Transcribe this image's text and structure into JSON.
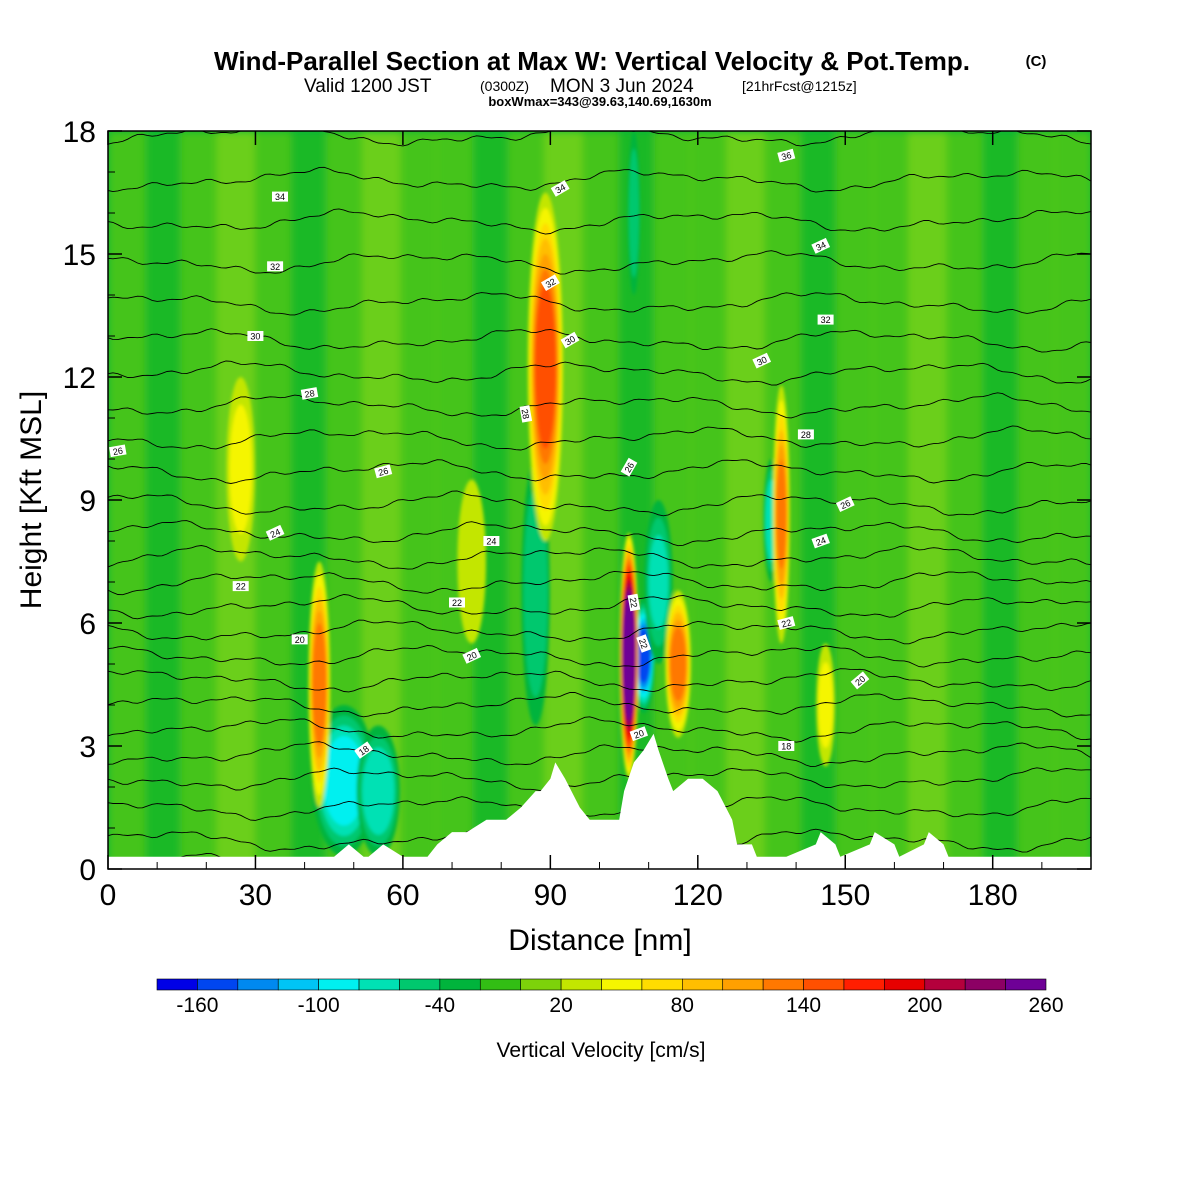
{
  "header": {
    "title": "Wind-Parallel Section at Max W: Vertical Velocity & Pot.Temp.",
    "title_mark": "(C)",
    "valid_prefix": "Valid 1200 JST",
    "valid_utc": "(0300Z)",
    "valid_date": "MON 3 Jun 2024",
    "forecast_tag": "[21hrFcst@1215z]",
    "box_info": "boxWmax=343@39.63,140.69,1630m"
  },
  "chart_data": {
    "type": "heatmap",
    "xlabel": "Distance [nm]",
    "ylabel": "Height [Kft MSL]",
    "xlim": [
      0,
      200
    ],
    "ylim": [
      0,
      18
    ],
    "x_ticks": [
      "0",
      "30",
      "60",
      "90",
      "120",
      "150",
      "180"
    ],
    "x_tick_values": [
      0,
      30,
      60,
      90,
      120,
      150,
      180
    ],
    "y_ticks": [
      "0",
      "3",
      "6",
      "9",
      "12",
      "15",
      "18"
    ],
    "y_tick_values": [
      0,
      3,
      6,
      9,
      12,
      15,
      18
    ],
    "background_w_cms": 0,
    "updraft_bands": [
      {
        "x": 27,
        "width": 2.5,
        "z_bottom": 7.5,
        "z_top": 12,
        "w_max": 40
      },
      {
        "x": 43,
        "width": 1.8,
        "z_bottom": 1.5,
        "z_top": 7.5,
        "w_max": 130
      },
      {
        "x": 74,
        "width": 2.5,
        "z_bottom": 5.5,
        "z_top": 9.5,
        "w_max": 35
      },
      {
        "x": 89,
        "width": 3.2,
        "z_bottom": 8,
        "z_top": 16.5,
        "w_max": 155
      },
      {
        "x": 106,
        "width": 1.5,
        "z_bottom": 2.2,
        "z_top": 8.2,
        "w_max": 343
      },
      {
        "x": 116,
        "width": 2.2,
        "z_bottom": 3.2,
        "z_top": 6.8,
        "w_max": 130
      },
      {
        "x": 137,
        "width": 1.3,
        "z_bottom": 5.5,
        "z_top": 11.8,
        "w_max": 120
      },
      {
        "x": 146,
        "width": 1.5,
        "z_bottom": 2.5,
        "z_top": 5.5,
        "w_max": 45
      }
    ],
    "downdraft_bands": [
      {
        "x": 109,
        "width": 1.8,
        "z_bottom": 3.8,
        "z_top": 6.6,
        "w_min": -160
      },
      {
        "x": 48,
        "width": 6,
        "z_bottom": 0.3,
        "z_top": 4,
        "w_min": -90
      },
      {
        "x": 55,
        "width": 4,
        "z_bottom": 0.3,
        "z_top": 3.5,
        "w_min": -75
      },
      {
        "x": 87,
        "width": 2.5,
        "z_bottom": 3.5,
        "z_top": 10,
        "w_min": -60
      },
      {
        "x": 112,
        "width": 2.5,
        "z_bottom": 5,
        "z_top": 9,
        "w_min": -65
      },
      {
        "x": 135,
        "width": 1.2,
        "z_bottom": 7,
        "z_top": 10,
        "w_min": -80
      },
      {
        "x": 107,
        "width": 0.8,
        "z_bottom": 14,
        "z_top": 18,
        "w_min": -60
      }
    ],
    "terrain": {
      "x": [
        0,
        3,
        10,
        46,
        49,
        52,
        53,
        56,
        60,
        65,
        67,
        70,
        73,
        77,
        81,
        84,
        87,
        88,
        90,
        91,
        93,
        96,
        98,
        104,
        105,
        107,
        109,
        111,
        112,
        114,
        115,
        118,
        121,
        124,
        127,
        128,
        131,
        132,
        134,
        137,
        138,
        144,
        145,
        148,
        149,
        155,
        156,
        160,
        161,
        166,
        167,
        170,
        171,
        172,
        200
      ],
      "z": [
        0.3,
        0.3,
        0.3,
        0.3,
        0.6,
        0.3,
        0.3,
        0.6,
        0.3,
        0.3,
        0.6,
        0.9,
        0.9,
        1.2,
        1.2,
        1.5,
        1.9,
        1.9,
        2.2,
        2.6,
        2.2,
        1.5,
        1.2,
        1.2,
        1.9,
        2.6,
        2.9,
        3.3,
        2.9,
        2.2,
        1.9,
        2.2,
        2.2,
        1.9,
        1.2,
        0.6,
        0.6,
        0.3,
        0.3,
        0.3,
        0.3,
        0.6,
        0.9,
        0.6,
        0.3,
        0.6,
        0.9,
        0.6,
        0.3,
        0.6,
        0.9,
        0.6,
        0.3,
        0.3,
        0.3
      ]
    },
    "theta_contours": {
      "interval": 1,
      "start": 13,
      "end": 37,
      "reference_heights": [
        0.1,
        0.7,
        1.5,
        2.2,
        2.8,
        3.4,
        4.0,
        4.6,
        5.2,
        5.8,
        6.4,
        7.0,
        7.6,
        8.2,
        8.9,
        9.7,
        10.5,
        11.3,
        12.1,
        12.9,
        13.8,
        14.8,
        15.8,
        16.8,
        17.9
      ]
    },
    "contour_labels": [
      {
        "text": "36",
        "x": 138,
        "z": 17.4,
        "angle": -15
      },
      {
        "text": "34",
        "x": 35,
        "z": 16.4,
        "angle": 0
      },
      {
        "text": "34",
        "x": 92,
        "z": 16.6,
        "angle": -30
      },
      {
        "text": "34",
        "x": 145,
        "z": 15.2,
        "angle": -25
      },
      {
        "text": "32",
        "x": 34,
        "z": 14.7,
        "angle": 0
      },
      {
        "text": "32",
        "x": 90,
        "z": 14.3,
        "angle": -30
      },
      {
        "text": "32",
        "x": 146,
        "z": 13.4,
        "angle": 0
      },
      {
        "text": "30",
        "x": 30,
        "z": 13.0,
        "angle": 0
      },
      {
        "text": "30",
        "x": 94,
        "z": 12.9,
        "angle": -30
      },
      {
        "text": "30",
        "x": 133,
        "z": 12.4,
        "angle": -25
      },
      {
        "text": "28",
        "x": 41,
        "z": 11.6,
        "angle": -10
      },
      {
        "text": "28",
        "x": 85,
        "z": 11.1,
        "angle": 80
      },
      {
        "text": "28",
        "x": 142,
        "z": 10.6,
        "angle": 0
      },
      {
        "text": "26",
        "x": 2,
        "z": 10.2,
        "angle": -10
      },
      {
        "text": "26",
        "x": 56,
        "z": 9.7,
        "angle": -15
      },
      {
        "text": "26",
        "x": 106,
        "z": 9.8,
        "angle": -60
      },
      {
        "text": "26",
        "x": 150,
        "z": 8.9,
        "angle": -25
      },
      {
        "text": "24",
        "x": 34,
        "z": 8.2,
        "angle": -25
      },
      {
        "text": "24",
        "x": 78,
        "z": 8.0,
        "angle": 0
      },
      {
        "text": "24",
        "x": 145,
        "z": 8.0,
        "angle": -20
      },
      {
        "text": "22",
        "x": 27,
        "z": 6.9,
        "angle": 0
      },
      {
        "text": "22",
        "x": 71,
        "z": 6.5,
        "angle": 0
      },
      {
        "text": "22",
        "x": 107,
        "z": 6.5,
        "angle": 80
      },
      {
        "text": "22",
        "x": 109,
        "z": 5.5,
        "angle": 70
      },
      {
        "text": "22",
        "x": 138,
        "z": 6.0,
        "angle": -15
      },
      {
        "text": "20",
        "x": 39,
        "z": 5.6,
        "angle": 0
      },
      {
        "text": "20",
        "x": 74,
        "z": 5.2,
        "angle": -25
      },
      {
        "text": "20",
        "x": 153,
        "z": 4.6,
        "angle": -40
      },
      {
        "text": "20",
        "x": 108,
        "z": 3.3,
        "angle": -20
      },
      {
        "text": "18",
        "x": 52,
        "z": 2.9,
        "angle": -35
      },
      {
        "text": "18",
        "x": 138,
        "z": 3.0,
        "angle": 0
      }
    ],
    "colorbar": {
      "label": "Vertical Velocity [cm/s]",
      "min": -180,
      "step": 20,
      "tick_labels": [
        "-160",
        "-100",
        "-40",
        "20",
        "80",
        "140",
        "200",
        "260"
      ],
      "tick_values": [
        -160,
        -100,
        -40,
        20,
        80,
        140,
        200,
        260
      ],
      "colors": [
        "#0000e6",
        "#0046f0",
        "#0089f0",
        "#00c4f5",
        "#00f0f0",
        "#00e1b4",
        "#00c86e",
        "#00b43c",
        "#32be14",
        "#7dd20a",
        "#c3e600",
        "#f5f500",
        "#ffdc00",
        "#ffbe00",
        "#ffa000",
        "#ff7800",
        "#ff5000",
        "#ff1e00",
        "#e60000",
        "#b4003c",
        "#8c0064",
        "#6e0096"
      ]
    }
  }
}
